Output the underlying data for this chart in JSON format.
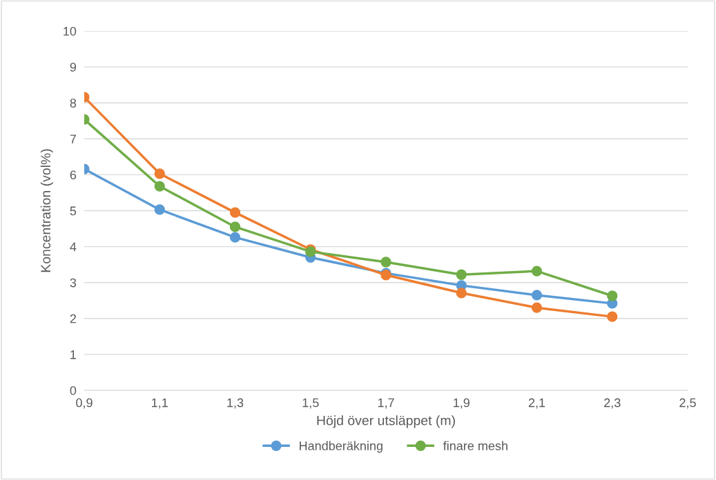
{
  "chart_data": {
    "type": "line",
    "xlabel": "Höjd över utsläppet (m)",
    "ylabel": "Koncentration (vol%)",
    "x": [
      0.9,
      1.1,
      1.3,
      1.5,
      1.7,
      1.9,
      2.1,
      2.3
    ],
    "series": [
      {
        "name": "Handberäkning",
        "color": "#5b9bd5",
        "values": [
          6.16,
          5.03,
          4.26,
          3.7,
          3.26,
          2.92,
          2.65,
          2.42
        ]
      },
      {
        "color": "#ed7d31",
        "values": [
          8.16,
          6.03,
          4.95,
          3.92,
          3.21,
          2.71,
          2.3,
          2.05
        ]
      },
      {
        "name": "finare mesh",
        "color": "#70ad47",
        "values": [
          7.54,
          5.68,
          4.55,
          3.86,
          3.57,
          3.22,
          3.32,
          2.63
        ]
      }
    ],
    "xlim": [
      0.9,
      2.5
    ],
    "xticks": [
      {
        "value": 0.9,
        "label": "0,9"
      },
      {
        "value": 1.1,
        "label": "1,1"
      },
      {
        "value": 1.3,
        "label": "1,3"
      },
      {
        "value": 1.5,
        "label": "1,5"
      },
      {
        "value": 1.7,
        "label": "1,7"
      },
      {
        "value": 1.9,
        "label": "1,9"
      },
      {
        "value": 2.1,
        "label": "2,1"
      },
      {
        "value": 2.3,
        "label": "2,3"
      },
      {
        "value": 2.5,
        "label": "2,5"
      }
    ],
    "ylim": [
      0,
      10
    ],
    "yticks": [
      0,
      1,
      2,
      3,
      4,
      5,
      6,
      7,
      8,
      9,
      10
    ],
    "grid": "y",
    "legend": "bottom",
    "marker": "circle",
    "line_style": "solid"
  }
}
